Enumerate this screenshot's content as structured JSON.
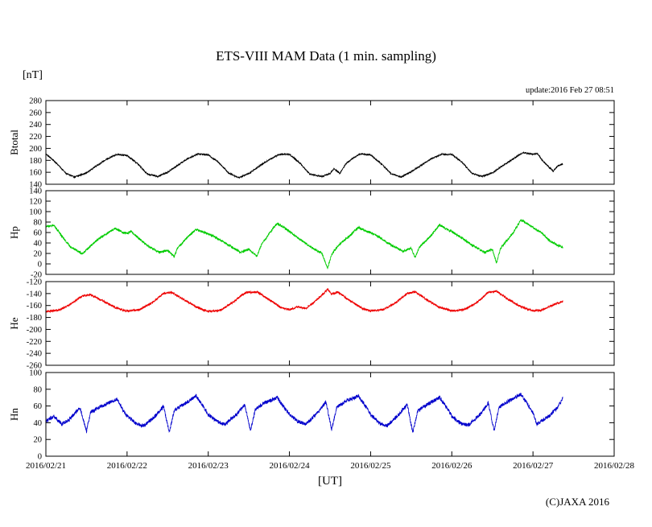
{
  "page": {
    "title": "ETS-VIII MAM Data (1 min. sampling)",
    "unit_label": "[nT]",
    "update_note": "update:2016 Feb 27 08:51",
    "xlabel": "[UT]",
    "copyright": "(C)JAXA 2016"
  },
  "chart_data": {
    "type": "line",
    "title": "ETS-VIII MAM Data (1 min. sampling)",
    "xlabel": "[UT]",
    "x_unit": "days from 2016/02/21 00:00 UT",
    "xlim": [
      0,
      7
    ],
    "grid": false,
    "legend": "none",
    "xtick_labels": [
      "2016/02/21",
      "2016/02/22",
      "2016/02/23",
      "2016/02/24",
      "2016/02/25",
      "2016/02/26",
      "2016/02/27",
      "2016/02/28"
    ],
    "panels": [
      {
        "name": "Btotal",
        "color": "#000000",
        "ylim": [
          140,
          280
        ],
        "ytick_step": 20,
        "noise": 1.2,
        "points": [
          [
            0,
            191
          ],
          [
            0.125,
            176
          ],
          [
            0.25,
            158
          ],
          [
            0.35,
            152
          ],
          [
            0.5,
            159
          ],
          [
            0.625,
            171
          ],
          [
            0.75,
            182
          ],
          [
            0.875,
            190
          ],
          [
            0.95,
            189
          ],
          [
            1,
            188
          ],
          [
            1.125,
            175
          ],
          [
            1.25,
            157
          ],
          [
            1.375,
            153
          ],
          [
            1.5,
            160
          ],
          [
            1.625,
            172
          ],
          [
            1.75,
            183
          ],
          [
            1.875,
            191
          ],
          [
            2,
            189
          ],
          [
            2.125,
            177
          ],
          [
            2.25,
            159
          ],
          [
            2.375,
            151
          ],
          [
            2.5,
            158
          ],
          [
            2.625,
            170
          ],
          [
            2.75,
            181
          ],
          [
            2.875,
            190
          ],
          [
            3,
            190
          ],
          [
            3.125,
            176
          ],
          [
            3.25,
            157
          ],
          [
            3.4,
            153
          ],
          [
            3.5,
            158
          ],
          [
            3.55,
            166
          ],
          [
            3.62,
            158
          ],
          [
            3.7,
            175
          ],
          [
            3.8,
            185
          ],
          [
            3.875,
            191
          ],
          [
            4,
            189
          ],
          [
            4.125,
            175
          ],
          [
            4.25,
            158
          ],
          [
            4.375,
            152
          ],
          [
            4.5,
            161
          ],
          [
            4.625,
            172
          ],
          [
            4.75,
            183
          ],
          [
            4.875,
            190
          ],
          [
            5,
            190
          ],
          [
            5.125,
            177
          ],
          [
            5.25,
            158
          ],
          [
            5.375,
            153
          ],
          [
            5.5,
            159
          ],
          [
            5.625,
            171
          ],
          [
            5.75,
            182
          ],
          [
            5.875,
            193
          ],
          [
            6,
            190
          ],
          [
            6.05,
            192
          ],
          [
            6.125,
            178
          ],
          [
            6.25,
            162
          ],
          [
            6.3,
            170
          ],
          [
            6.368,
            174
          ]
        ]
      },
      {
        "name": "Hp",
        "color": "#00cc00",
        "ylim": [
          -20,
          140
        ],
        "ytick_step": 20,
        "noise": 2.2,
        "points": [
          [
            0,
            71
          ],
          [
            0.1,
            74
          ],
          [
            0.2,
            52
          ],
          [
            0.3,
            33
          ],
          [
            0.4,
            24
          ],
          [
            0.45,
            20
          ],
          [
            0.5,
            27
          ],
          [
            0.625,
            45
          ],
          [
            0.75,
            58
          ],
          [
            0.85,
            68
          ],
          [
            0.95,
            60
          ],
          [
            1,
            58
          ],
          [
            1.05,
            62
          ],
          [
            1.15,
            48
          ],
          [
            1.25,
            35
          ],
          [
            1.4,
            22
          ],
          [
            1.5,
            26
          ],
          [
            1.58,
            14
          ],
          [
            1.62,
            30
          ],
          [
            1.75,
            52
          ],
          [
            1.85,
            66
          ],
          [
            1.95,
            60
          ],
          [
            2,
            58
          ],
          [
            2.1,
            50
          ],
          [
            2.25,
            36
          ],
          [
            2.4,
            22
          ],
          [
            2.5,
            28
          ],
          [
            2.6,
            15
          ],
          [
            2.65,
            35
          ],
          [
            2.75,
            58
          ],
          [
            2.85,
            78
          ],
          [
            2.95,
            68
          ],
          [
            3,
            62
          ],
          [
            3.1,
            50
          ],
          [
            3.25,
            34
          ],
          [
            3.4,
            20
          ],
          [
            3.47,
            -8
          ],
          [
            3.52,
            18
          ],
          [
            3.6,
            35
          ],
          [
            3.75,
            55
          ],
          [
            3.85,
            70
          ],
          [
            3.95,
            62
          ],
          [
            4,
            60
          ],
          [
            4.1,
            52
          ],
          [
            4.25,
            36
          ],
          [
            4.4,
            24
          ],
          [
            4.5,
            30
          ],
          [
            4.55,
            12
          ],
          [
            4.6,
            32
          ],
          [
            4.75,
            55
          ],
          [
            4.85,
            75
          ],
          [
            4.95,
            65
          ],
          [
            5,
            62
          ],
          [
            5.1,
            52
          ],
          [
            5.25,
            36
          ],
          [
            5.4,
            22
          ],
          [
            5.5,
            28
          ],
          [
            5.55,
            2
          ],
          [
            5.6,
            30
          ],
          [
            5.75,
            58
          ],
          [
            5.85,
            84
          ],
          [
            5.9,
            80
          ],
          [
            6,
            70
          ],
          [
            6.1,
            60
          ],
          [
            6.2,
            45
          ],
          [
            6.3,
            36
          ],
          [
            6.368,
            32
          ]
        ]
      },
      {
        "name": "He",
        "color": "#ee0000",
        "ylim": [
          -260,
          -120
        ],
        "ytick_step": 20,
        "noise": 1.8,
        "points": [
          [
            0,
            -170
          ],
          [
            0.15,
            -168
          ],
          [
            0.3,
            -158
          ],
          [
            0.45,
            -144
          ],
          [
            0.55,
            -142
          ],
          [
            0.7,
            -152
          ],
          [
            0.85,
            -163
          ],
          [
            0.95,
            -168
          ],
          [
            1,
            -169
          ],
          [
            1.15,
            -167
          ],
          [
            1.3,
            -156
          ],
          [
            1.45,
            -140
          ],
          [
            1.55,
            -138
          ],
          [
            1.7,
            -150
          ],
          [
            1.85,
            -162
          ],
          [
            1.95,
            -168
          ],
          [
            2,
            -170
          ],
          [
            2.15,
            -168
          ],
          [
            2.3,
            -155
          ],
          [
            2.45,
            -139
          ],
          [
            2.6,
            -137
          ],
          [
            2.75,
            -150
          ],
          [
            2.9,
            -164
          ],
          [
            3,
            -167
          ],
          [
            3.1,
            -162
          ],
          [
            3.2,
            -165
          ],
          [
            3.3,
            -155
          ],
          [
            3.42,
            -140
          ],
          [
            3.47,
            -133
          ],
          [
            3.52,
            -141
          ],
          [
            3.6,
            -138
          ],
          [
            3.75,
            -152
          ],
          [
            3.9,
            -165
          ],
          [
            4,
            -169
          ],
          [
            4.15,
            -167
          ],
          [
            4.3,
            -156
          ],
          [
            4.45,
            -140
          ],
          [
            4.55,
            -137
          ],
          [
            4.7,
            -151
          ],
          [
            4.85,
            -163
          ],
          [
            5,
            -169
          ],
          [
            5.15,
            -167
          ],
          [
            5.3,
            -156
          ],
          [
            5.45,
            -138
          ],
          [
            5.55,
            -136
          ],
          [
            5.7,
            -150
          ],
          [
            5.85,
            -162
          ],
          [
            5.95,
            -167
          ],
          [
            6,
            -169
          ],
          [
            6.1,
            -168
          ],
          [
            6.2,
            -162
          ],
          [
            6.3,
            -156
          ],
          [
            6.368,
            -153
          ]
        ]
      },
      {
        "name": "Hn",
        "color": "#0000cc",
        "ylim": [
          0,
          100
        ],
        "ytick_step": 20,
        "noise": 2.2,
        "points": [
          [
            0,
            42
          ],
          [
            0.1,
            48
          ],
          [
            0.2,
            38
          ],
          [
            0.3,
            45
          ],
          [
            0.42,
            58
          ],
          [
            0.5,
            30
          ],
          [
            0.55,
            52
          ],
          [
            0.65,
            58
          ],
          [
            0.8,
            65
          ],
          [
            0.88,
            68
          ],
          [
            0.95,
            55
          ],
          [
            1,
            48
          ],
          [
            1.1,
            40
          ],
          [
            1.2,
            36
          ],
          [
            1.35,
            48
          ],
          [
            1.45,
            60
          ],
          [
            1.52,
            28
          ],
          [
            1.58,
            55
          ],
          [
            1.7,
            62
          ],
          [
            1.85,
            72
          ],
          [
            1.95,
            58
          ],
          [
            2,
            50
          ],
          [
            2.1,
            42
          ],
          [
            2.2,
            38
          ],
          [
            2.35,
            50
          ],
          [
            2.45,
            62
          ],
          [
            2.52,
            30
          ],
          [
            2.58,
            56
          ],
          [
            2.7,
            64
          ],
          [
            2.85,
            70
          ],
          [
            2.95,
            56
          ],
          [
            3,
            50
          ],
          [
            3.1,
            42
          ],
          [
            3.2,
            38
          ],
          [
            3.35,
            52
          ],
          [
            3.45,
            65
          ],
          [
            3.52,
            32
          ],
          [
            3.58,
            58
          ],
          [
            3.7,
            66
          ],
          [
            3.85,
            72
          ],
          [
            3.95,
            58
          ],
          [
            4,
            50
          ],
          [
            4.1,
            40
          ],
          [
            4.2,
            36
          ],
          [
            4.35,
            50
          ],
          [
            4.45,
            62
          ],
          [
            4.52,
            28
          ],
          [
            4.58,
            54
          ],
          [
            4.7,
            62
          ],
          [
            4.85,
            70
          ],
          [
            4.95,
            56
          ],
          [
            5,
            48
          ],
          [
            5.1,
            40
          ],
          [
            5.2,
            37
          ],
          [
            5.35,
            50
          ],
          [
            5.45,
            64
          ],
          [
            5.52,
            30
          ],
          [
            5.58,
            58
          ],
          [
            5.7,
            66
          ],
          [
            5.85,
            74
          ],
          [
            5.95,
            60
          ],
          [
            6,
            52
          ],
          [
            6.05,
            38
          ],
          [
            6.1,
            42
          ],
          [
            6.2,
            48
          ],
          [
            6.3,
            58
          ],
          [
            6.35,
            66
          ],
          [
            6.368,
            70
          ]
        ]
      }
    ]
  }
}
